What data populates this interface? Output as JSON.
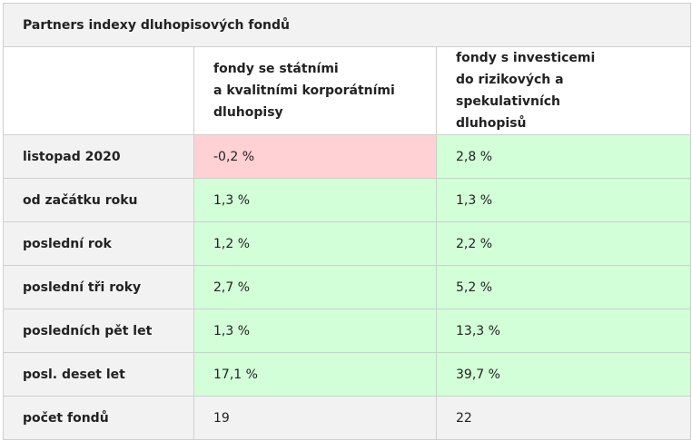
{
  "title": "Partners indexy dluhopisových fondů",
  "columns": [
    {
      "lines": [
        "fondy se státními",
        "a kvalitními korporátními",
        "dluhopisy"
      ]
    },
    {
      "lines": [
        "fondy s investicemi",
        "do rizikových a spekulativních",
        "dluhopisů"
      ]
    }
  ],
  "rows": [
    {
      "label": "listopad 2020",
      "values": [
        "-0,2 %",
        "2,8 %"
      ],
      "status": [
        "negative",
        "positive"
      ]
    },
    {
      "label": "od začátku roku",
      "values": [
        "1,3 %",
        "1,3 %"
      ],
      "status": [
        "positive",
        "positive"
      ]
    },
    {
      "label": "poslední rok",
      "values": [
        "1,2 %",
        "2,2 %"
      ],
      "status": [
        "positive",
        "positive"
      ]
    },
    {
      "label": "poslední tři roky",
      "values": [
        "2,7 %",
        "5,2 %"
      ],
      "status": [
        "positive",
        "positive"
      ]
    },
    {
      "label": "posledních pět let",
      "values": [
        "1,3 %",
        "13,3 %"
      ],
      "status": [
        "positive",
        "positive"
      ]
    },
    {
      "label": "posl. deset let",
      "values": [
        "17,1 %",
        "39,7 %"
      ],
      "status": [
        "positive",
        "positive"
      ]
    },
    {
      "label": "počet fondů",
      "values": [
        "19",
        "22"
      ],
      "status": [
        "neutral",
        "neutral"
      ]
    }
  ],
  "colors": {
    "positive": "#d2ffd8",
    "negative": "#ffd0d4",
    "neutral": "#f2f2f2"
  }
}
